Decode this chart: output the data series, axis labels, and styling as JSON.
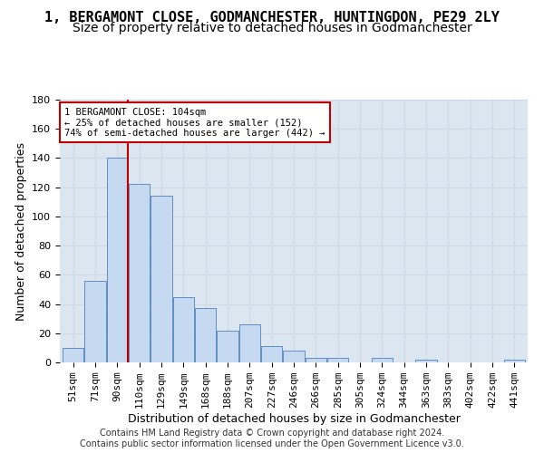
{
  "title": "1, BERGAMONT CLOSE, GODMANCHESTER, HUNTINGDON, PE29 2LY",
  "subtitle": "Size of property relative to detached houses in Godmanchester",
  "xlabel": "Distribution of detached houses by size in Godmanchester",
  "ylabel": "Number of detached properties",
  "categories": [
    "51sqm",
    "71sqm",
    "90sqm",
    "110sqm",
    "129sqm",
    "149sqm",
    "168sqm",
    "188sqm",
    "207sqm",
    "227sqm",
    "246sqm",
    "266sqm",
    "285sqm",
    "305sqm",
    "324sqm",
    "344sqm",
    "363sqm",
    "383sqm",
    "402sqm",
    "422sqm",
    "441sqm"
  ],
  "bar_values": [
    10,
    56,
    140,
    122,
    114,
    45,
    37,
    22,
    26,
    11,
    8,
    3,
    3,
    0,
    3,
    0,
    2,
    0,
    0,
    0,
    2
  ],
  "bar_color": "#c5d9f1",
  "bar_edge_color": "#4f81bd",
  "vline_x": 2.5,
  "vline_color": "#c00000",
  "annotation_text": "1 BERGAMONT CLOSE: 104sqm\n← 25% of detached houses are smaller (152)\n74% of semi-detached houses are larger (442) →",
  "annotation_box_color": "#ffffff",
  "annotation_box_edge": "#c00000",
  "ylim": [
    0,
    180
  ],
  "yticks": [
    0,
    20,
    40,
    60,
    80,
    100,
    120,
    140,
    160,
    180
  ],
  "grid_color": "#d0d8e8",
  "bg_color": "#dce6f1",
  "footer": "Contains HM Land Registry data © Crown copyright and database right 2024.\nContains public sector information licensed under the Open Government Licence v3.0.",
  "title_fontsize": 11,
  "subtitle_fontsize": 10,
  "xlabel_fontsize": 9,
  "ylabel_fontsize": 9,
  "tick_fontsize": 8,
  "footer_fontsize": 7
}
